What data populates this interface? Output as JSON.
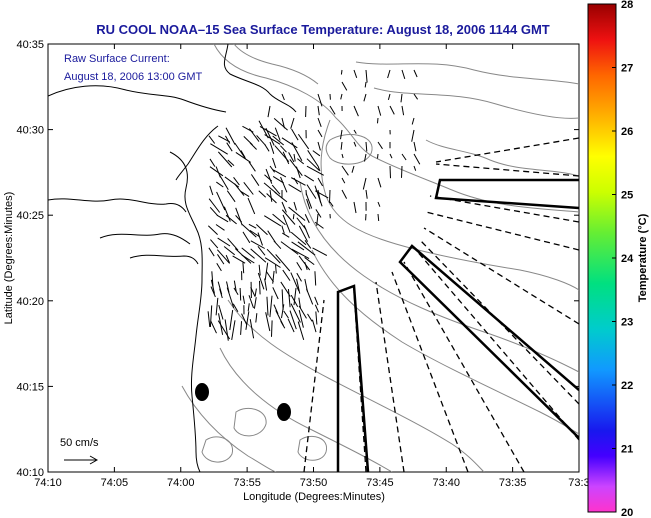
{
  "header": {
    "title": "RU COOL  NOAA–15  Sea Surface Temperature:  August 18, 2006 1144 GMT"
  },
  "overlay": {
    "current_line1": "Raw Surface Current:",
    "current_line2": "August 18, 2006 13:00 GMT",
    "scale_label": "50 cm/s"
  },
  "axes": {
    "xlabel": "Longitude (Degrees:Minutes)",
    "ylabel": "Latitude (Degrees:Minutes)",
    "x_ticks": [
      "74:10",
      "74:05",
      "74:00",
      "73:55",
      "73:50",
      "73:45",
      "73:40",
      "73:35",
      "73:3"
    ],
    "y_ticks": [
      "40:35",
      "40:30",
      "40:25",
      "40:20",
      "40:15",
      "40:10"
    ]
  },
  "colorbar": {
    "label": "Temperature (°C)",
    "ticks": [
      "28",
      "27",
      "26",
      "25",
      "24",
      "23",
      "22",
      "21",
      "20"
    ],
    "min": 20,
    "max": 28
  },
  "colors": {
    "title": "#1a1a9c",
    "land_outline": "#000000",
    "bathymetry": "#888888"
  }
}
